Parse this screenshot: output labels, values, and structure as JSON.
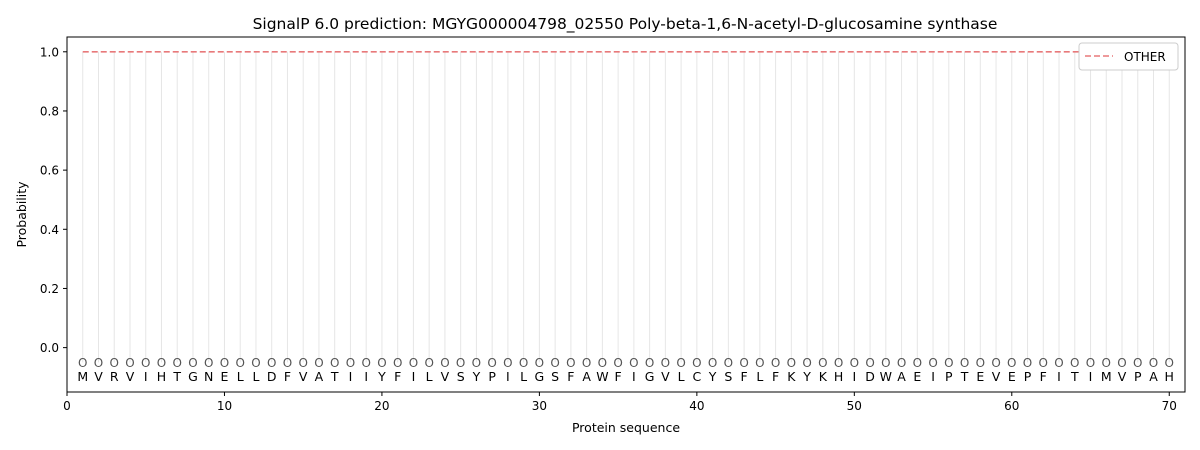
{
  "chart_data": {
    "type": "line",
    "title": "SignalP 6.0 prediction: MGYG000004798_02550 Poly-beta-1,6-N-acetyl-D-glucosamine synthase",
    "xlabel": "Protein sequence",
    "ylabel": "Probability",
    "xlim": [
      0,
      71
    ],
    "ylim": [
      -0.15,
      1.05
    ],
    "x_ticks": [
      0,
      10,
      20,
      30,
      40,
      50,
      60,
      70
    ],
    "y_ticks": [
      0.0,
      0.2,
      0.4,
      0.6,
      0.8,
      1.0
    ],
    "x_tick_labels": [
      "0",
      "10",
      "20",
      "30",
      "40",
      "50",
      "60",
      "70"
    ],
    "y_tick_labels": [
      "0.0",
      "0.2",
      "0.4",
      "0.6",
      "0.8",
      "1.0"
    ],
    "sequence": [
      "M",
      "V",
      "R",
      "V",
      "I",
      "H",
      "T",
      "G",
      "N",
      "E",
      "L",
      "L",
      "D",
      "F",
      "V",
      "A",
      "T",
      "I",
      "I",
      "Y",
      "F",
      "I",
      "L",
      "V",
      "S",
      "Y",
      "P",
      "I",
      "L",
      "G",
      "S",
      "F",
      "A",
      "W",
      "F",
      "I",
      "G",
      "V",
      "L",
      "C",
      "Y",
      "S",
      "F",
      "L",
      "F",
      "K",
      "Y",
      "K",
      "H",
      "I",
      "D",
      "W",
      "A",
      "E",
      "I",
      "P",
      "T",
      "E",
      "V",
      "E",
      "P",
      "F",
      "I",
      "T",
      "I",
      "M",
      "V",
      "P",
      "A",
      "H"
    ],
    "region_labels": [
      "O",
      "O",
      "O",
      "O",
      "O",
      "O",
      "O",
      "O",
      "O",
      "O",
      "O",
      "O",
      "O",
      "O",
      "O",
      "O",
      "O",
      "O",
      "O",
      "O",
      "O",
      "O",
      "O",
      "O",
      "O",
      "O",
      "O",
      "O",
      "O",
      "O",
      "O",
      "O",
      "O",
      "O",
      "O",
      "O",
      "O",
      "O",
      "O",
      "O",
      "O",
      "O",
      "O",
      "O",
      "O",
      "O",
      "O",
      "O",
      "O",
      "O",
      "O",
      "O",
      "O",
      "O",
      "O",
      "O",
      "O",
      "O",
      "O",
      "O",
      "O",
      "O",
      "O",
      "O",
      "O",
      "O",
      "O",
      "O",
      "O",
      "O"
    ],
    "series": [
      {
        "name": "OTHER",
        "color": "#e8797a",
        "style": "dashed",
        "x_start": 1,
        "x_end": 70,
        "value": 1.0
      }
    ],
    "legend": {
      "position": "top-right",
      "entries": [
        "OTHER"
      ]
    },
    "grid": "vertical lines at each residue"
  }
}
